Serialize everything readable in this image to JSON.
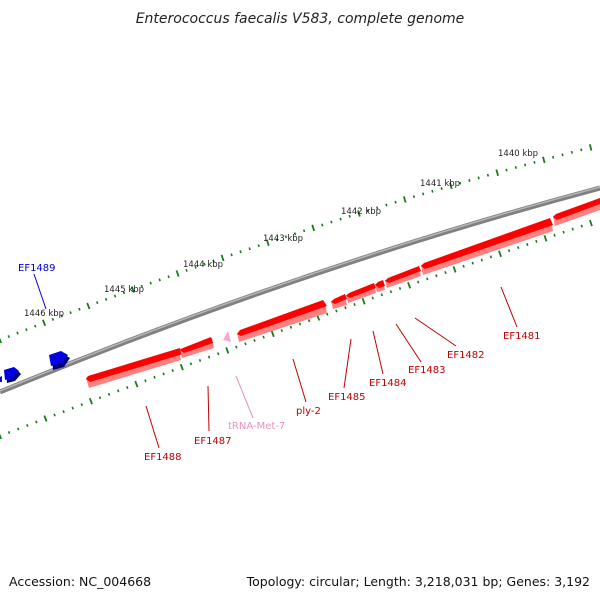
{
  "title": "Enterococcus faecalis V583, complete genome",
  "footer": {
    "accession": "Accession: NC_004668",
    "summary": "Topology: circular; Length: 3,218,031 bp; Genes: 3,192"
  },
  "colors": {
    "backbone": "#808080",
    "forward_gene": "#0000e0",
    "reverse_gene": "#ff0000",
    "trna": "#f6a8cf",
    "ticks": "#1a7a1a",
    "reverse_label": "#c00000",
    "forward_label": "#0000cc",
    "trna_label": "#e890c0"
  },
  "ruler": [
    {
      "label": "1440 kbp"
    },
    {
      "label": "1441 kbp"
    },
    {
      "label": "1442 kbp"
    },
    {
      "label": "1443 kbp"
    },
    {
      "label": "1444 kbp"
    },
    {
      "label": "1445 kbp"
    },
    {
      "label": "1446 kbp"
    }
  ],
  "genes": [
    {
      "name": "EF1489",
      "strand": "+",
      "type": "CDS"
    },
    {
      "name": "EF1488",
      "strand": "-",
      "type": "CDS"
    },
    {
      "name": "EF1487",
      "strand": "-",
      "type": "CDS"
    },
    {
      "name": "tRNA-Met-7",
      "strand": "-",
      "type": "tRNA"
    },
    {
      "name": "ply-2",
      "strand": "-",
      "type": "CDS"
    },
    {
      "name": "EF1485",
      "strand": "-",
      "type": "CDS"
    },
    {
      "name": "EF1484",
      "strand": "-",
      "type": "CDS"
    },
    {
      "name": "EF1483",
      "strand": "-",
      "type": "CDS"
    },
    {
      "name": "EF1482",
      "strand": "-",
      "type": "CDS"
    },
    {
      "name": "EF1481",
      "strand": "-",
      "type": "CDS"
    }
  ]
}
